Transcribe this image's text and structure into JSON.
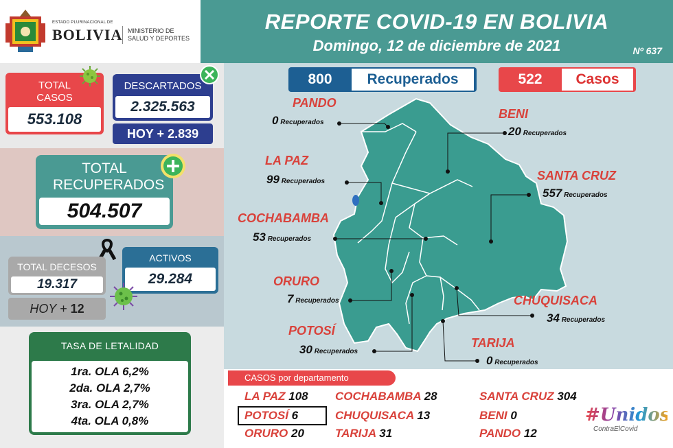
{
  "header": {
    "logo_small": "ESTADO PLURINACIONAL DE",
    "logo_big": "BOLIVIA",
    "ministry_line1": "MINISTERIO DE",
    "ministry_line2": "SALUD Y DEPORTES",
    "title": "REPORTE COVID-19 EN BOLIVIA",
    "date": "Domingo, 12 de diciembre de 2021",
    "report_number": "Nº 637"
  },
  "summary": {
    "total_casos_label": "TOTAL CASOS",
    "total_casos_value": "553.108",
    "descartados_label": "DESCARTADOS",
    "descartados_value": "2.325.563",
    "descartados_hoy": "HOY + 2.839",
    "total_recuperados_label": "TOTAL RECUPERADOS",
    "total_recuperados_value": "504.507",
    "total_decesos_label": "TOTAL DECESOS",
    "total_decesos_value": "19.317",
    "decesos_hoy_prefix": "HOY + ",
    "decesos_hoy_value": "12",
    "activos_label": "ACTIVOS",
    "activos_value": "29.284"
  },
  "tasa": {
    "label": "TASA DE LETALIDAD",
    "rows": [
      "1ra. OLA 6,2%",
      "2da. OLA 2,7%",
      "3ra. OLA 2,7%",
      "4ta. OLA 0,8%"
    ]
  },
  "daily": {
    "recuperados_value": "800",
    "recuperados_label": "Recuperados",
    "casos_value": "522",
    "casos_label": "Casos"
  },
  "map": {
    "recuperados_word": "Recuperados",
    "departments": [
      {
        "name": "PANDO",
        "recuperados": "0"
      },
      {
        "name": "BENI",
        "recuperados": "20"
      },
      {
        "name": "LA PAZ",
        "recuperados": "99"
      },
      {
        "name": "SANTA CRUZ",
        "recuperados": "557"
      },
      {
        "name": "COCHABAMBA",
        "recuperados": "53"
      },
      {
        "name": "ORURO",
        "recuperados": "7"
      },
      {
        "name": "CHUQUISACA",
        "recuperados": "34"
      },
      {
        "name": "POTOSÍ",
        "recuperados": "30"
      },
      {
        "name": "TARIJA",
        "recuperados": "0"
      }
    ]
  },
  "cases_by_department": {
    "label": "CASOS por departamento",
    "items": [
      {
        "name": "LA PAZ",
        "value": "108"
      },
      {
        "name": "COCHABAMBA",
        "value": "28"
      },
      {
        "name": "SANTA CRUZ",
        "value": "304"
      },
      {
        "name": "POTOSÍ",
        "value": "6"
      },
      {
        "name": "CHUQUISACA",
        "value": "13"
      },
      {
        "name": "BENI",
        "value": "0"
      },
      {
        "name": "ORURO",
        "value": "20"
      },
      {
        "name": "TARIJA",
        "value": "31"
      },
      {
        "name": "PANDO",
        "value": "12"
      }
    ]
  },
  "campaign": {
    "logo_text": "#Unidos",
    "tagline": "ContraElCovid"
  },
  "colors": {
    "teal": "#4a9a93",
    "red": "#e8474a",
    "navy": "#2d3e8f",
    "green": "#2d7a4a"
  }
}
